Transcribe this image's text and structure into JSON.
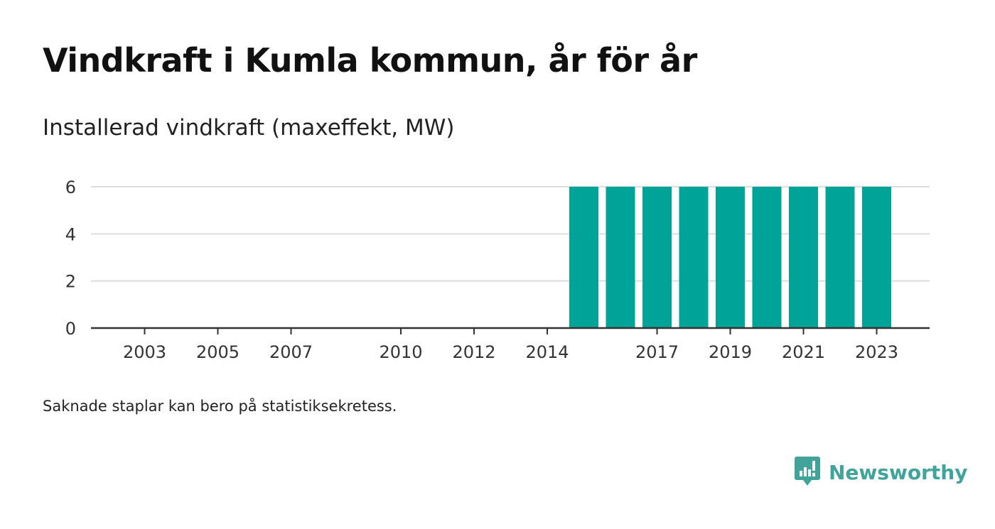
{
  "title": "Vindkraft i Kumla kommun, år för år",
  "subtitle": "Installerad vindkraft (maxeffekt, MW)",
  "note": "Saknade staplar kan bero på statistiksekretess.",
  "brand": {
    "name": "Newsworthy",
    "icon": "newsworthy-logo-icon",
    "color": "#41a39a"
  },
  "chart_data": {
    "type": "bar",
    "categories": [
      "2002",
      "2003",
      "2004",
      "2005",
      "2006",
      "2007",
      "2008",
      "2009",
      "2010",
      "2011",
      "2012",
      "2013",
      "2014",
      "2015",
      "2016",
      "2017",
      "2018",
      "2019",
      "2020",
      "2021",
      "2022",
      "2023",
      "2024"
    ],
    "values": [
      0,
      0,
      0,
      0,
      0,
      0,
      0,
      0,
      0,
      0,
      0,
      0,
      0,
      6,
      6,
      6,
      6,
      6,
      6,
      6,
      6,
      6,
      0
    ],
    "x_tick_labels": [
      "2003",
      "2005",
      "2007",
      "2010",
      "2012",
      "2014",
      "2017",
      "2019",
      "2021",
      "2023"
    ],
    "y_ticks": [
      0,
      2,
      4,
      6
    ],
    "ylim": [
      0,
      6
    ],
    "grid": true,
    "bar_color": "#00a397",
    "title": "Vindkraft i Kumla kommun, år för år",
    "ylabel": "Installerad vindkraft (maxeffekt, MW)"
  }
}
